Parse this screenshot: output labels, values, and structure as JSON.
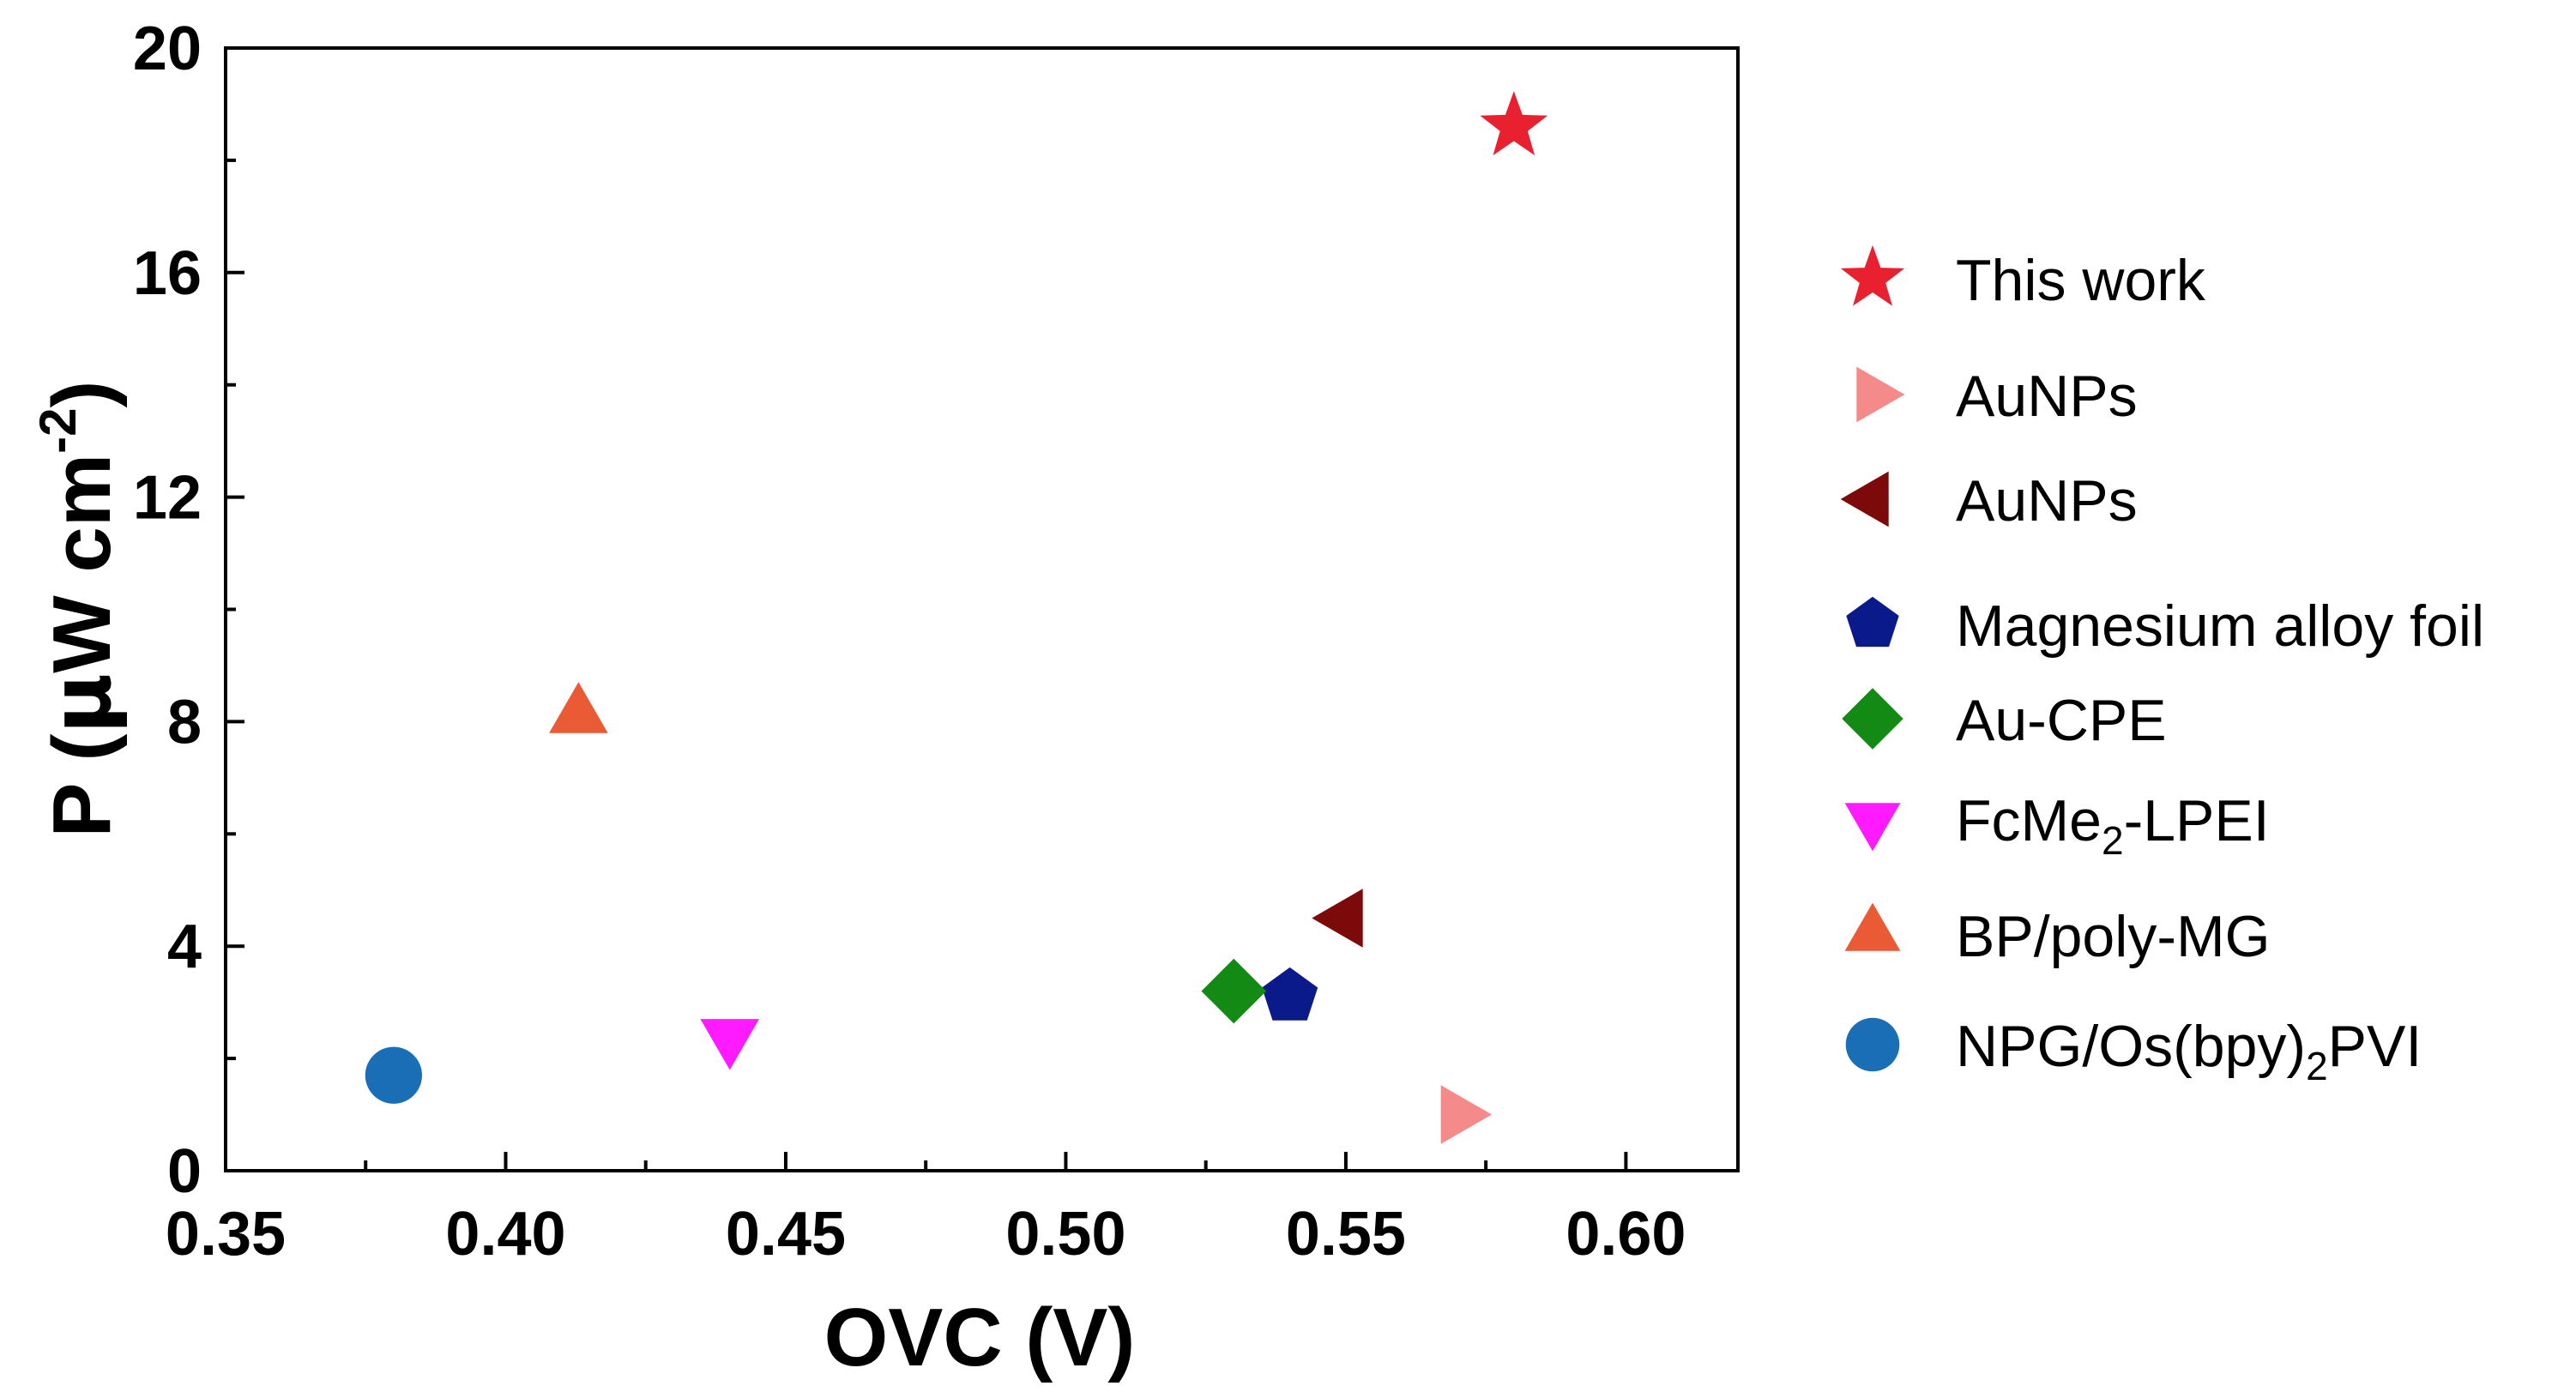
{
  "chart_data": {
    "type": "scatter",
    "title": "",
    "xlabel": {
      "main": "OVC",
      "unit": "(V)"
    },
    "ylabel": {
      "main": "P",
      "unit_open": "(",
      "mu": "μ",
      "unit_rest": "W cm",
      "sup": "-2",
      "unit_close": ")"
    },
    "xlim": [
      0.35,
      0.62
    ],
    "ylim": [
      0,
      20
    ],
    "x_ticks": [
      {
        "value": 0.35,
        "label": "0.35"
      },
      {
        "value": 0.4,
        "label": "0.40"
      },
      {
        "value": 0.45,
        "label": "0.45"
      },
      {
        "value": 0.5,
        "label": "0.50"
      },
      {
        "value": 0.55,
        "label": "0.55"
      },
      {
        "value": 0.6,
        "label": "0.60"
      }
    ],
    "y_ticks": [
      {
        "value": 0,
        "label": "0"
      },
      {
        "value": 4,
        "label": "4"
      },
      {
        "value": 8,
        "label": "8"
      },
      {
        "value": 12,
        "label": "12"
      },
      {
        "value": 16,
        "label": "16"
      },
      {
        "value": 20,
        "label": "20"
      }
    ],
    "legend_position": "right",
    "series": [
      {
        "name": "This work",
        "label_parts": [
          {
            "t": "This work"
          }
        ],
        "marker": "star",
        "color": "#e8202f",
        "x": 0.58,
        "y": 18.6
      },
      {
        "name": "AuNPs",
        "label_parts": [
          {
            "t": "AuNPs"
          }
        ],
        "marker": "triangle-right",
        "color": "#f48a8a",
        "x": 0.57,
        "y": 1.0
      },
      {
        "name": "AuNPs",
        "label_parts": [
          {
            "t": "AuNPs"
          }
        ],
        "marker": "triangle-left",
        "color": "#7d0a0a",
        "x": 0.55,
        "y": 4.5
      },
      {
        "name": "Magnesium alloy foil",
        "label_parts": [
          {
            "t": "Magnesium alloy foil"
          }
        ],
        "marker": "pentagon",
        "color": "#0b1a8a",
        "x": 0.54,
        "y": 3.1
      },
      {
        "name": "Au-CPE",
        "label_parts": [
          {
            "t": "Au-CPE"
          }
        ],
        "marker": "diamond",
        "color": "#138a13",
        "x": 0.53,
        "y": 3.2
      },
      {
        "name": "FcMe2-LPEI",
        "label_parts": [
          {
            "t": "FcMe"
          },
          {
            "t": "2",
            "sub": true
          },
          {
            "t": "-LPEI"
          }
        ],
        "marker": "triangle-down",
        "color": "#ff1aff",
        "x": 0.44,
        "y": 2.4
      },
      {
        "name": "BP/poly-MG",
        "label_parts": [
          {
            "t": "BP/poly-MG"
          }
        ],
        "marker": "triangle-up",
        "color": "#ea5a34",
        "x": 0.413,
        "y": 8.1
      },
      {
        "name": "NPG/Os(bpy)2PVI",
        "label_parts": [
          {
            "t": "NPG/Os(bpy)"
          },
          {
            "t": "2",
            "sub": true
          },
          {
            "t": "PVI"
          }
        ],
        "marker": "circle",
        "color": "#1a6eb5",
        "x": 0.38,
        "y": 1.7
      }
    ]
  }
}
